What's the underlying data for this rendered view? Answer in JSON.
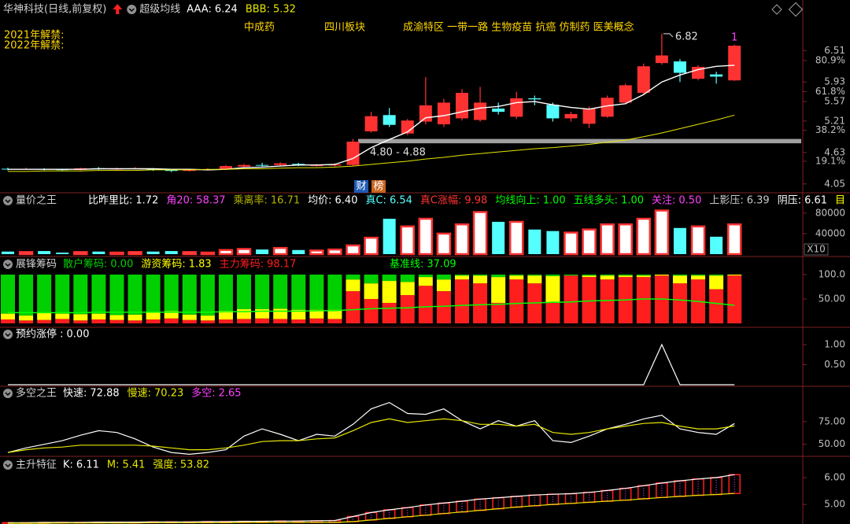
{
  "chart_data": [
    {
      "type": "candlestick",
      "title": "华神科技(日线,前复权)",
      "subtitle": "超级均线",
      "tags": [
        "中成药",
        "四川板块",
        "成渝特区 一带一路 生物疫苗 抗癌 仿制药 医美概念"
      ],
      "notes": [
        "2021年解禁:",
        "2022年解禁:"
      ],
      "open": [
        4.33,
        4.32,
        4.33,
        4.32,
        4.31,
        4.34,
        4.32,
        4.33,
        4.33,
        4.31,
        4.29,
        4.31,
        4.33,
        4.37,
        4.4,
        4.4,
        4.42,
        4.38,
        4.39,
        4.4,
        5.02,
        5.32,
        4.98,
        5.2,
        5.15,
        5.26,
        5.23,
        5.44,
        5.29,
        5.63,
        5.51,
        5.26,
        5.16,
        5.29,
        5.55,
        5.73,
        6.28,
        6.31,
        5.99,
        6.07,
        5.96
      ],
      "high": [
        4.35,
        4.35,
        4.34,
        4.33,
        4.35,
        4.36,
        4.35,
        4.36,
        4.34,
        4.32,
        4.33,
        4.34,
        4.4,
        4.42,
        4.44,
        4.45,
        4.44,
        4.42,
        4.43,
        4.88,
        5.38,
        5.45,
        5.25,
        6.02,
        5.62,
        5.8,
        5.84,
        5.55,
        5.75,
        5.68,
        5.55,
        5.38,
        5.48,
        5.68,
        5.9,
        6.27,
        6.82,
        6.35,
        6.24,
        6.12,
        6.62
      ],
      "low": [
        4.3,
        4.31,
        4.3,
        4.29,
        4.3,
        4.31,
        4.31,
        4.32,
        4.29,
        4.27,
        4.28,
        4.3,
        4.32,
        4.36,
        4.37,
        4.38,
        4.38,
        4.37,
        4.37,
        4.38,
        5.0,
        5.1,
        4.95,
        5.15,
        5.1,
        5.22,
        5.2,
        5.33,
        5.25,
        5.5,
        5.2,
        5.2,
        5.08,
        5.27,
        5.52,
        5.7,
        6.25,
        5.93,
        5.96,
        5.9,
        5.95
      ],
      "close": [
        4.32,
        4.33,
        4.32,
        4.31,
        4.34,
        4.33,
        4.33,
        4.34,
        4.31,
        4.29,
        4.31,
        4.32,
        4.38,
        4.4,
        4.39,
        4.43,
        4.39,
        4.4,
        4.41,
        4.83,
        5.3,
        5.14,
        5.22,
        5.5,
        5.55,
        5.73,
        5.55,
        5.38,
        5.63,
        5.61,
        5.26,
        5.34,
        5.44,
        5.64,
        5.87,
        6.22,
        6.42,
        6.1,
        6.21,
        6.03,
        6.6
      ],
      "up_color": "#ff3232",
      "down_color": "#54ffff",
      "series": [
        {
          "name": "AAA:",
          "color": "#ffffff",
          "readout": "6.24",
          "values": [
            4.32,
            4.32,
            4.32,
            4.32,
            4.32,
            4.33,
            4.33,
            4.33,
            4.33,
            4.32,
            4.32,
            4.31,
            4.32,
            4.35,
            4.36,
            4.38,
            4.4,
            4.4,
            4.41,
            4.52,
            4.72,
            4.87,
            5.01,
            5.27,
            5.31,
            5.38,
            5.45,
            5.48,
            5.55,
            5.57,
            5.51,
            5.46,
            5.43,
            5.49,
            5.53,
            5.7,
            5.93,
            6.06,
            6.16,
            6.22,
            6.24
          ]
        },
        {
          "name": "BBB:",
          "color": "#e6e600",
          "readout": "5.32",
          "values": [
            4.28,
            4.28,
            4.29,
            4.29,
            4.29,
            4.3,
            4.3,
            4.3,
            4.31,
            4.31,
            4.31,
            4.32,
            4.32,
            4.33,
            4.33,
            4.34,
            4.35,
            4.35,
            4.36,
            4.38,
            4.41,
            4.44,
            4.47,
            4.51,
            4.54,
            4.58,
            4.61,
            4.64,
            4.67,
            4.7,
            4.72,
            4.75,
            4.78,
            4.82,
            4.86,
            4.92,
            4.99,
            5.07,
            5.15,
            5.23,
            5.32
          ]
        }
      ],
      "band": {
        "label": "4.80 - 4.88",
        "low": 4.8,
        "high": 4.88,
        "color": "#a0a0a0"
      },
      "peak": 6.82,
      "marker": "1",
      "badges": [
        "财",
        "榜"
      ],
      "ylim": [
        3.96,
        7.08
      ],
      "yticks": [
        4.05,
        4.63,
        5.21,
        5.57,
        5.93,
        6.51
      ],
      "y2lim": [
        2.2,
        106
      ],
      "y2ticks": [
        {
          "value": 19.1,
          "label": "19.1%"
        },
        {
          "value": 38.2,
          "label": "38.2%"
        },
        {
          "value": 61.8,
          "label": "61.8%"
        },
        {
          "value": 80.9,
          "label": "80.9%"
        }
      ]
    },
    {
      "type": "volume",
      "title": "量价之王",
      "readouts": [
        {
          "label": "比昨里比:",
          "value": "1.72",
          "color": "#ffffff"
        },
        {
          "label": "角20:",
          "value": "58.37",
          "color": "#ff40ff"
        },
        {
          "label": "乘离率:",
          "value": "16.71",
          "color": "#b4b400"
        },
        {
          "label": "均价:",
          "value": "6.40",
          "color": "#ffffff"
        },
        {
          "label": "真C:",
          "value": "6.54",
          "color": "#54ffff"
        },
        {
          "label": "真C涨幅:",
          "value": "9.98",
          "color": "#ff3232"
        },
        {
          "label": "均线向上:",
          "value": "1.00",
          "color": "#00ff00"
        },
        {
          "label": "五线多头:",
          "value": "1.00",
          "color": "#00ff00"
        },
        {
          "label": "关注:",
          "value": "0.50",
          "color": "#ff40ff"
        },
        {
          "label": "上影压:",
          "value": "6.39",
          "color": "#c8c8c8"
        },
        {
          "label": "阴压:",
          "value": "6.61",
          "color": "#ffffff"
        },
        {
          "label": "目",
          "color": "#ffff00"
        }
      ],
      "values": [
        5000,
        4000,
        6000,
        3000,
        4000,
        5000,
        3000,
        4000,
        5000,
        6000,
        4000,
        3000,
        8000,
        10000,
        9000,
        12000,
        8000,
        7000,
        9000,
        17000,
        32000,
        69000,
        54000,
        69000,
        40000,
        58000,
        82000,
        63000,
        63000,
        48000,
        45000,
        42000,
        48000,
        58000,
        58000,
        69000,
        85000,
        51000,
        54000,
        34000,
        58000
      ],
      "unit_label": "X10",
      "ylim": [
        0,
        89000
      ],
      "yticks": [
        40000,
        80000
      ]
    },
    {
      "type": "stacked_bar",
      "title": "展锋筹码",
      "series": [
        {
          "name": "散户筹码:",
          "color": "#00d000",
          "readout": "0.00",
          "values": [
            80,
            84,
            79,
            80,
            81,
            80,
            83,
            82,
            78,
            75,
            82,
            84,
            74,
            71,
            71,
            70,
            72,
            72,
            72,
            10,
            18,
            13,
            15,
            5,
            10,
            2,
            2,
            5,
            2,
            2,
            3,
            2,
            2,
            2,
            2,
            2,
            0,
            2,
            2,
            2,
            0
          ]
        },
        {
          "name": "游资筹码:",
          "color": "#ffff00",
          "readout": "1.83",
          "values": [
            12,
            10,
            14,
            11,
            13,
            12,
            10,
            12,
            14,
            15,
            11,
            10,
            18,
            20,
            19,
            21,
            20,
            18,
            19,
            24,
            32,
            45,
            27,
            18,
            24,
            8,
            16,
            53,
            8,
            16,
            55,
            0,
            3,
            8,
            3,
            3,
            2,
            16,
            8,
            28,
            1.83
          ]
        },
        {
          "name": "主力筹码:",
          "color": "#ff1e1e",
          "readout": "98.17",
          "values": [
            8,
            6,
            7,
            9,
            6,
            8,
            7,
            6,
            8,
            10,
            7,
            6,
            8,
            9,
            10,
            9,
            8,
            10,
            9,
            66,
            50,
            42,
            58,
            77,
            66,
            90,
            82,
            42,
            90,
            82,
            42,
            98,
            95,
            90,
            95,
            95,
            98,
            82,
            90,
            70,
            98.17
          ]
        }
      ],
      "line": {
        "name": "基准线:",
        "color": "#00ff00",
        "readout": "37.09",
        "values": [
          22,
          22,
          22,
          22,
          22,
          23,
          23,
          23,
          23,
          23,
          23,
          23,
          24,
          24,
          25,
          25,
          25,
          26,
          26,
          28,
          30,
          31,
          32,
          34,
          35,
          37,
          38,
          39,
          41,
          42,
          43,
          44,
          46,
          47,
          48,
          50,
          50,
          48,
          45,
          41,
          37.09
        ]
      },
      "ylim": [
        0,
        100
      ],
      "yticks": [
        {
          "value": 50,
          "label": "50.00"
        },
        {
          "value": 100,
          "label": "100.0"
        }
      ]
    },
    {
      "type": "line",
      "series": [
        {
          "name": "预约涨停 :",
          "color": "#ffffff",
          "readout": "0.00",
          "values": [
            0,
            0,
            0,
            0,
            0,
            0,
            0,
            0,
            0,
            0,
            0,
            0,
            0,
            0,
            0,
            0,
            0,
            0,
            0,
            0,
            0,
            0,
            0,
            0,
            0,
            0,
            0,
            0,
            0,
            0,
            0,
            0,
            0,
            0,
            0,
            0,
            1,
            0,
            0,
            0,
            0
          ]
        }
      ],
      "ylim": [
        0,
        1
      ],
      "yticks": [
        {
          "value": 0.5,
          "label": "0.50"
        },
        {
          "value": 1,
          "label": "1.00"
        }
      ]
    },
    {
      "type": "line",
      "title": "多空之王",
      "series": [
        {
          "name": "快速:",
          "color": "#ffffff",
          "readout": "72.88",
          "values": [
            41,
            46,
            50,
            54,
            60,
            65,
            63,
            56,
            47,
            41,
            39,
            41,
            44,
            59,
            67,
            61,
            54,
            61,
            59,
            72,
            89,
            96,
            84,
            83,
            89,
            76,
            67,
            76,
            70,
            76,
            54,
            52,
            59,
            67,
            72,
            78,
            82,
            67,
            63,
            61,
            72.88
          ]
        },
        {
          "name": "慢速:",
          "color": "#e6e600",
          "readout": "70.23",
          "values": [
            41,
            44,
            46,
            47,
            49,
            49,
            49,
            49,
            48,
            46,
            44,
            44,
            46,
            49,
            53,
            54,
            54,
            56,
            57,
            65,
            74,
            78,
            74,
            76,
            78,
            76,
            72,
            72,
            70,
            72,
            63,
            61,
            63,
            67,
            70,
            73,
            74,
            70,
            67,
            67,
            70.23
          ]
        }
      ],
      "readouts": [
        {
          "label": "多空:",
          "value": "2.65",
          "color": "#ff40ff"
        }
      ],
      "ylim": [
        35,
        100
      ],
      "yticks": [
        {
          "value": 50,
          "label": "50.00"
        },
        {
          "value": 75,
          "label": "75.00"
        }
      ]
    },
    {
      "type": "band",
      "title": "主升特征",
      "series": [
        {
          "name": "K:",
          "color": "#ffffff",
          "readout": "6.11",
          "values": [
            4.32,
            4.32,
            4.33,
            4.33,
            4.33,
            4.34,
            4.34,
            4.34,
            4.35,
            4.35,
            4.35,
            4.36,
            4.36,
            4.37,
            4.37,
            4.38,
            4.38,
            4.39,
            4.4,
            4.55,
            4.7,
            4.8,
            4.88,
            4.98,
            5.05,
            5.12,
            5.2,
            5.25,
            5.3,
            5.35,
            5.38,
            5.4,
            5.45,
            5.52,
            5.6,
            5.7,
            5.8,
            5.88,
            5.95,
            6.0,
            6.11
          ]
        },
        {
          "name": "M:",
          "color": "#e6e600",
          "readout": "5.41",
          "values": [
            4.3,
            4.3,
            4.3,
            4.31,
            4.31,
            4.31,
            4.31,
            4.31,
            4.32,
            4.32,
            4.32,
            4.32,
            4.32,
            4.33,
            4.33,
            4.33,
            4.33,
            4.33,
            4.33,
            4.36,
            4.42,
            4.48,
            4.54,
            4.6,
            4.66,
            4.72,
            4.78,
            4.84,
            4.9,
            4.95,
            5.0,
            5.04,
            5.08,
            5.12,
            5.16,
            5.21,
            5.26,
            5.3,
            5.34,
            5.37,
            5.41
          ]
        }
      ],
      "readouts": [
        {
          "label": "强度:",
          "value": "53.82",
          "color": "#e6e600"
        }
      ],
      "band_color": "#ff1e1e",
      "ylim": [
        4.3,
        6.5
      ],
      "yticks": [
        {
          "value": 5,
          "label": "5.00"
        },
        {
          "value": 6,
          "label": "6.00"
        }
      ]
    }
  ]
}
